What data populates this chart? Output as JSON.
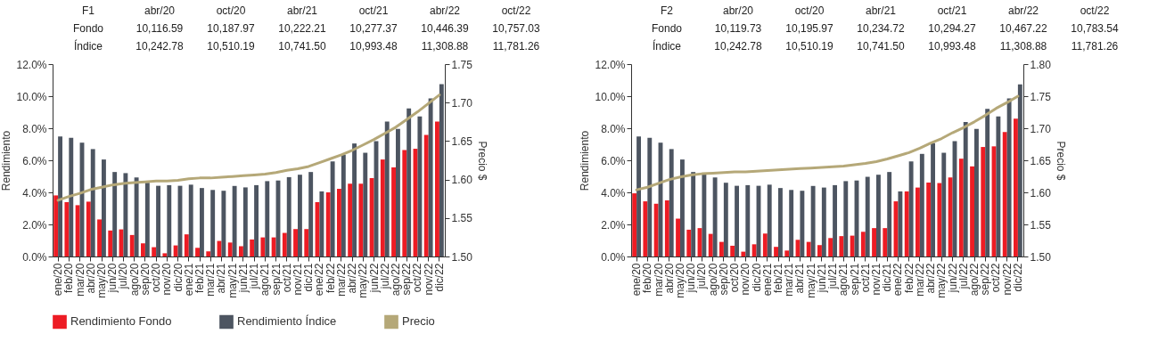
{
  "chart_data": [
    {
      "type": "bar",
      "categories": [
        "ene/20",
        "feb/20",
        "mar/20",
        "abr/20",
        "may/20",
        "jun/20",
        "jul/20",
        "ago/20",
        "sep/20",
        "oct/20",
        "nov/20",
        "dic/20",
        "ene/21",
        "feb/21",
        "mar/21",
        "abr/21",
        "may/21",
        "jun/21",
        "jul/21",
        "ago/21",
        "sep/21",
        "oct/21",
        "nov/21",
        "dic/21",
        "ene/22",
        "feb/22",
        "mar/22",
        "abr/22",
        "may/22",
        "jun/22",
        "jul/22",
        "ago/22",
        "sep/22",
        "oct/22",
        "nov/22",
        "dic/22"
      ],
      "ylabel": "Rendimiento",
      "y2label": "Precio $",
      "annotations": [
        "F1",
        "abr/20",
        "oct/20",
        "abr/21",
        "oct/21",
        "abr/22",
        "oct/22",
        "Fondo",
        "10,116.59",
        "10,187.97",
        "10,222.21",
        "10,277.37",
        "10,446.39",
        "10,757.03",
        "Índice",
        "10,242.78",
        "10,510.19",
        "10,741.50",
        "10,993.48",
        "11,308.88",
        "11,781.26"
      ],
      "series": [
        {
          "name": "Rendimiento Fondo",
          "color": "#ed1c24",
          "values": [
            3.81,
            3.39,
            3.2,
            3.42,
            2.31,
            1.62,
            1.69,
            1.34,
            0.82,
            0.58,
            0.2,
            0.69,
            1.38,
            0.54,
            0.32,
            0.97,
            0.87,
            0.64,
            1.06,
            1.19,
            1.19,
            1.47,
            1.71,
            1.71,
            3.39,
            4.0,
            4.22,
            4.54,
            4.54,
            4.89,
            6.05,
            5.56,
            6.64,
            6.72,
            7.59,
            8.41
          ]
        },
        {
          "name": "Rendimiento Índice",
          "color": "#4d5561",
          "values": [
            7.48,
            7.4,
            7.1,
            6.7,
            6.05,
            5.27,
            5.2,
            4.93,
            4.6,
            4.41,
            4.45,
            4.41,
            4.48,
            4.27,
            4.15,
            4.1,
            4.4,
            4.31,
            4.45,
            4.7,
            4.74,
            4.95,
            5.1,
            5.27,
            4.06,
            5.93,
            6.35,
            7.05,
            6.47,
            7.2,
            8.41,
            7.96,
            9.23,
            8.74,
            9.86,
            10.75
          ]
        },
        {
          "name": "Precio",
          "type": "line",
          "axis": "y2",
          "color": "#b5a878",
          "values": [
            1.573,
            1.578,
            1.582,
            1.587,
            1.59,
            1.593,
            1.595,
            1.596,
            1.597,
            1.598,
            1.598,
            1.599,
            1.601,
            1.602,
            1.602,
            1.603,
            1.604,
            1.605,
            1.606,
            1.607,
            1.609,
            1.612,
            1.614,
            1.617,
            1.622,
            1.627,
            1.632,
            1.638,
            1.645,
            1.652,
            1.66,
            1.668,
            1.678,
            1.688,
            1.699,
            1.71
          ]
        }
      ],
      "ylim": [
        0,
        12
      ],
      "yticks": [
        {
          "value": 0,
          "label": "0.0%"
        },
        {
          "value": 2,
          "label": "2.0%"
        },
        {
          "value": 4,
          "label": "4.0%"
        },
        {
          "value": 6,
          "label": "6.0%"
        },
        {
          "value": 8,
          "label": "8.0%"
        },
        {
          "value": 10,
          "label": "10.0%"
        },
        {
          "value": 12,
          "label": "12.0%"
        }
      ],
      "y2lim": [
        1.5,
        1.75
      ],
      "y2ticks": [
        {
          "value": 1.5,
          "label": "1.50"
        },
        {
          "value": 1.55,
          "label": "1.55"
        },
        {
          "value": 1.6,
          "label": "1.60"
        },
        {
          "value": 1.65,
          "label": "1.65"
        },
        {
          "value": 1.7,
          "label": "1.70"
        },
        {
          "value": 1.75,
          "label": "1.75"
        }
      ],
      "grid": false,
      "legend": "bottom"
    },
    {
      "type": "bar",
      "categories": [
        "ene/20",
        "feb/20",
        "mar/20",
        "abr/20",
        "may/20",
        "jun/20",
        "jul/20",
        "ago/20",
        "sep/20",
        "oct/20",
        "nov/20",
        "dic/20",
        "ene/21",
        "feb/21",
        "mar/21",
        "abr/21",
        "may/21",
        "jun/21",
        "jul/21",
        "ago/21",
        "sep/21",
        "oct/21",
        "nov/21",
        "dic/21",
        "ene/22",
        "feb/22",
        "mar/22",
        "abr/22",
        "may/22",
        "jun/22",
        "jul/22",
        "ago/22",
        "sep/22",
        "oct/22",
        "nov/22",
        "dic/22"
      ],
      "ylabel": "Rendimiento",
      "y2label": "Precio $",
      "annotations": [
        "F2",
        "abr/20",
        "oct/20",
        "abr/21",
        "oct/21",
        "abr/22",
        "oct/22",
        "Fondo",
        "10,119.73",
        "10,195.97",
        "10,234.72",
        "10,294.27",
        "10,467.22",
        "10,783.54",
        "Índice",
        "10,242.78",
        "10,510.19",
        "10,741.50",
        "10,993.48",
        "11,308.88",
        "11,781.26"
      ],
      "series": [
        {
          "name": "Rendimiento Fondo",
          "color": "#ed1c24",
          "values": [
            3.94,
            3.44,
            3.29,
            3.5,
            2.36,
            1.67,
            1.77,
            1.41,
            0.91,
            0.67,
            0.3,
            0.76,
            1.43,
            0.6,
            0.37,
            1.04,
            0.91,
            0.71,
            1.15,
            1.27,
            1.3,
            1.54,
            1.77,
            1.77,
            3.44,
            4.06,
            4.3,
            4.61,
            4.58,
            4.93,
            6.1,
            5.62,
            6.83,
            6.87,
            7.76,
            8.6
          ]
        },
        {
          "name": "Rendimiento Índice",
          "color": "#4d5561",
          "values": [
            7.48,
            7.4,
            7.1,
            6.7,
            6.05,
            5.27,
            5.2,
            4.93,
            4.6,
            4.41,
            4.45,
            4.41,
            4.48,
            4.27,
            4.15,
            4.1,
            4.4,
            4.3,
            4.45,
            4.7,
            4.74,
            4.97,
            5.1,
            5.27,
            4.06,
            5.93,
            6.4,
            7.07,
            6.47,
            7.2,
            8.39,
            7.96,
            9.21,
            8.74,
            9.86,
            10.73
          ]
        },
        {
          "name": "Precio",
          "type": "line",
          "axis": "y2",
          "color": "#b5a878",
          "values": [
            1.604,
            1.608,
            1.614,
            1.62,
            1.624,
            1.627,
            1.629,
            1.63,
            1.631,
            1.632,
            1.632,
            1.633,
            1.634,
            1.635,
            1.636,
            1.637,
            1.638,
            1.639,
            1.64,
            1.641,
            1.643,
            1.645,
            1.648,
            1.652,
            1.657,
            1.662,
            1.669,
            1.677,
            1.684,
            1.693,
            1.701,
            1.71,
            1.72,
            1.731,
            1.74,
            1.75
          ]
        }
      ],
      "ylim": [
        0,
        12
      ],
      "yticks": [
        {
          "value": 0,
          "label": "0.0%"
        },
        {
          "value": 2,
          "label": "2.0%"
        },
        {
          "value": 4,
          "label": "4.0%"
        },
        {
          "value": 6,
          "label": "6.0%"
        },
        {
          "value": 8,
          "label": "8.0%"
        },
        {
          "value": 10,
          "label": "10.0%"
        },
        {
          "value": 12,
          "label": "12.0%"
        }
      ],
      "y2lim": [
        1.5,
        1.8
      ],
      "y2ticks": [
        {
          "value": 1.5,
          "label": "1.50"
        },
        {
          "value": 1.55,
          "label": "1.55"
        },
        {
          "value": 1.6,
          "label": "1.60"
        },
        {
          "value": 1.65,
          "label": "1.65"
        },
        {
          "value": 1.7,
          "label": "1.70"
        },
        {
          "value": 1.75,
          "label": "1.75"
        },
        {
          "value": 1.8,
          "label": "1.80"
        }
      ],
      "grid": false,
      "legend": "bottom"
    }
  ]
}
